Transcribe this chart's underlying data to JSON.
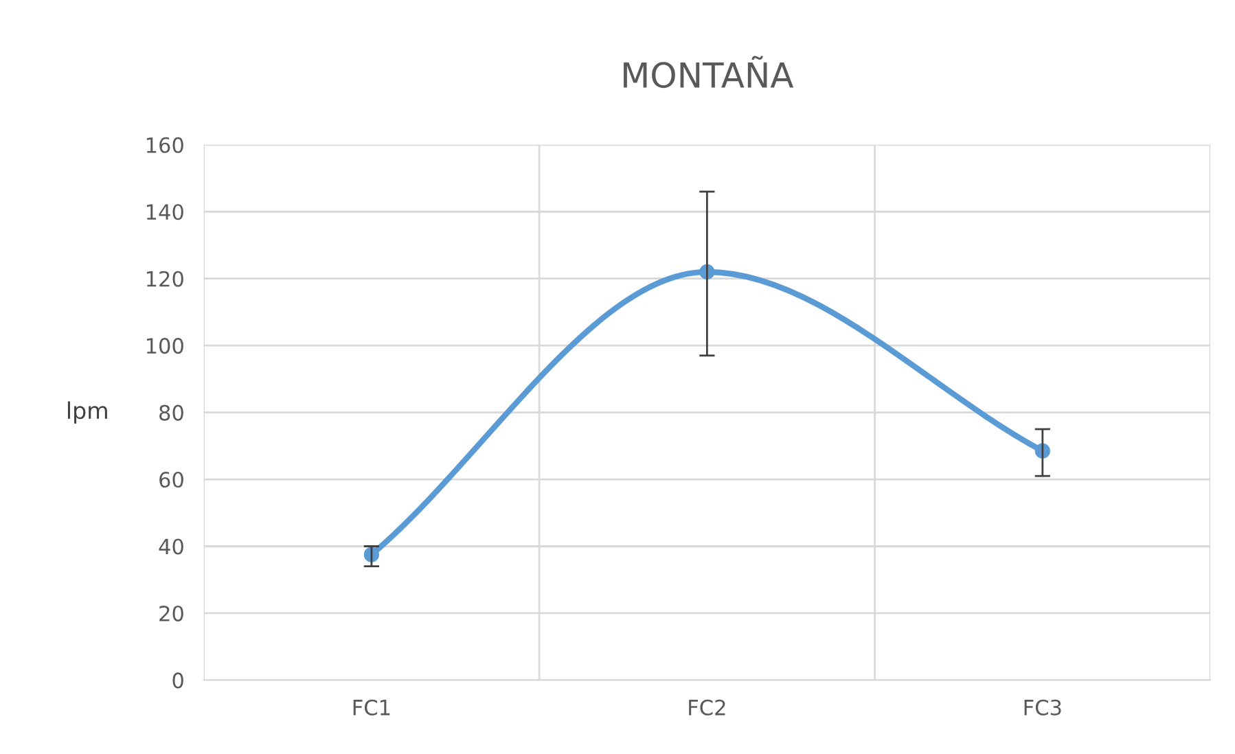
{
  "chart_data": {
    "type": "line",
    "title": "MONTAÑA",
    "ylabel": "lpm",
    "categories": [
      "FC1",
      "FC2",
      "FC3"
    ],
    "series": [
      {
        "color": "#5b9bd5",
        "values": [
          37.5,
          122,
          68.5
        ],
        "errors": [
          [
            34,
            40
          ],
          [
            97,
            146
          ],
          [
            61,
            75
          ]
        ]
      }
    ],
    "ylim": [
      0,
      160
    ],
    "yticks": [
      0,
      20,
      40,
      60,
      80,
      100,
      120,
      140,
      160
    ],
    "grid": true,
    "marker": "circle",
    "line_style": "solid"
  }
}
